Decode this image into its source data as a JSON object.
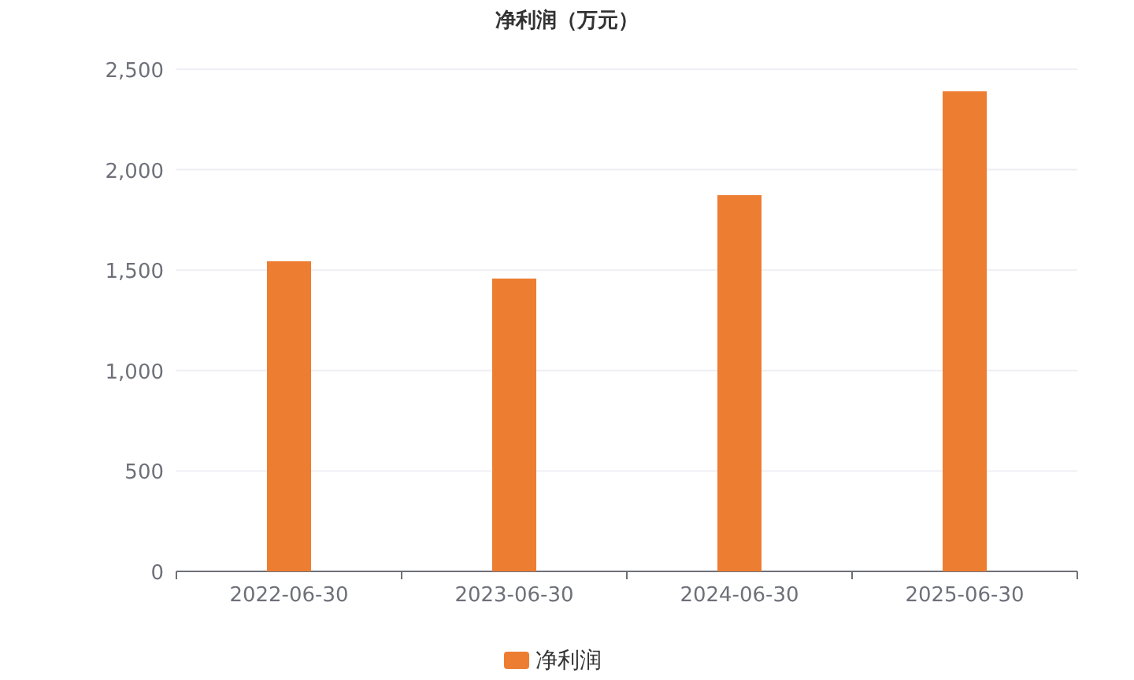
{
  "chart_data": {
    "type": "bar",
    "title": "净利润（万元）",
    "categories": [
      "2022-06-30",
      "2023-06-30",
      "2024-06-30",
      "2025-06-30"
    ],
    "series": [
      {
        "name": "净利润",
        "color": "#ed7d31",
        "values": [
          1544,
          1458,
          1873,
          2390
        ]
      }
    ],
    "ylim": [
      0,
      2500
    ],
    "yticks": [
      {
        "value": 0,
        "label": "0"
      },
      {
        "value": 500,
        "label": "500"
      },
      {
        "value": 1000,
        "label": "1,000"
      },
      {
        "value": 1500,
        "label": "1,500"
      },
      {
        "value": 2000,
        "label": "2,000"
      },
      {
        "value": 2500,
        "label": "2,500"
      }
    ],
    "grid": "y",
    "legend": "bottom"
  }
}
